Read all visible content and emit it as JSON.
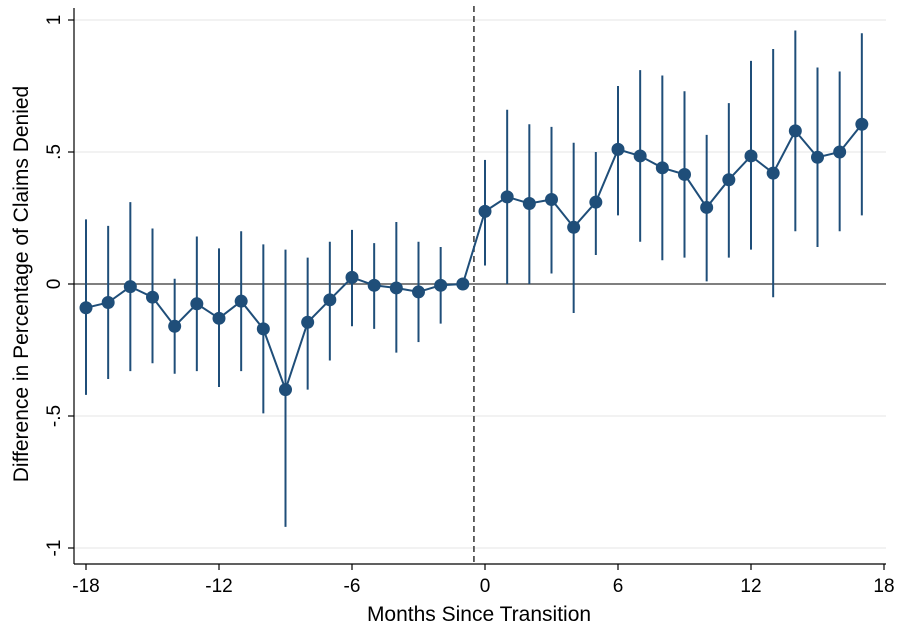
{
  "chart_data": {
    "type": "line",
    "title": "",
    "xlabel": "Months Since Transition",
    "ylabel": "Difference in Percentage of Claims Denied",
    "xlim": [
      -18,
      18
    ],
    "ylim": [
      -1,
      1
    ],
    "x_ticks": [
      -18,
      -12,
      -6,
      0,
      6,
      12,
      18
    ],
    "x_tick_labels": [
      "-18",
      "-12",
      "-6",
      "0",
      "6",
      "12",
      "18"
    ],
    "y_ticks": [
      -1,
      -0.5,
      0,
      0.5,
      1
    ],
    "y_tick_labels": [
      "-1",
      "-.5",
      "0",
      ".5",
      "1"
    ],
    "grid": "horizontal",
    "reference_lines": {
      "horizontal_at_y": 0,
      "vertical_dashed_at_x": -0.5
    },
    "colors": {
      "series": "#1f4e79",
      "zero_line": "#555555",
      "dashed_line": "#555555",
      "grid": "#e6e6e6"
    },
    "series": [
      {
        "x": [
          -18,
          -17,
          -16,
          -15,
          -14,
          -13,
          -12,
          -11,
          -10,
          -9,
          -8,
          -7,
          -6,
          -5,
          -4,
          -3,
          -2,
          -1,
          0,
          1,
          2,
          3,
          4,
          5,
          6,
          7,
          8,
          9,
          10,
          11,
          12,
          13,
          14,
          15,
          16,
          17
        ],
        "y": [
          -0.09,
          -0.07,
          -0.01,
          -0.05,
          -0.16,
          -0.075,
          -0.13,
          -0.065,
          -0.17,
          -0.4,
          -0.145,
          -0.06,
          0.025,
          -0.005,
          -0.015,
          -0.03,
          -0.005,
          0.0,
          0.275,
          0.33,
          0.305,
          0.32,
          0.215,
          0.31,
          0.51,
          0.485,
          0.44,
          0.415,
          0.29,
          0.395,
          0.485,
          0.42,
          0.58,
          0.48,
          0.5,
          0.605
        ],
        "ci_lower": [
          -0.42,
          -0.36,
          -0.33,
          -0.3,
          -0.34,
          -0.33,
          -0.39,
          -0.33,
          -0.49,
          -0.92,
          -0.4,
          -0.29,
          -0.16,
          -0.17,
          -0.26,
          -0.22,
          -0.15,
          0.0,
          0.07,
          0.0,
          0.0,
          0.04,
          -0.11,
          0.11,
          0.26,
          0.16,
          0.09,
          0.1,
          0.01,
          0.1,
          0.13,
          -0.05,
          0.2,
          0.14,
          0.2,
          0.26
        ],
        "ci_upper": [
          0.245,
          0.22,
          0.31,
          0.21,
          0.02,
          0.18,
          0.135,
          0.2,
          0.15,
          0.13,
          0.1,
          0.16,
          0.205,
          0.155,
          0.235,
          0.16,
          0.14,
          0.0,
          0.47,
          0.66,
          0.605,
          0.595,
          0.535,
          0.5,
          0.75,
          0.81,
          0.79,
          0.73,
          0.565,
          0.685,
          0.845,
          0.89,
          0.96,
          0.82,
          0.805,
          0.95
        ]
      }
    ]
  }
}
